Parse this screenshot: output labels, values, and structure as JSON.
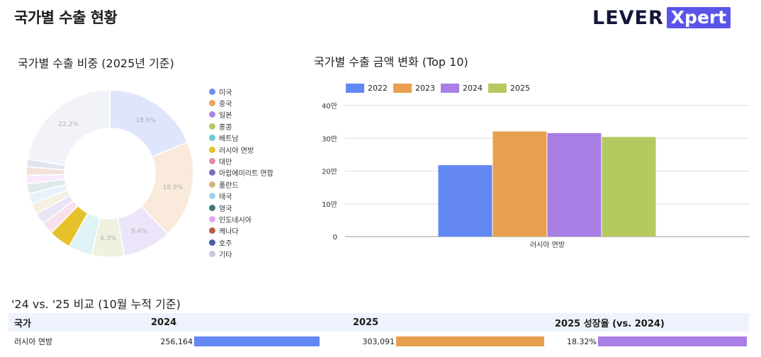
{
  "page_title": "국가별 수출 현황",
  "logo": {
    "text": "LEVER",
    "badge": "Xpert"
  },
  "pie_section": {
    "title": "국가별 수출 비중 (2025년 기준)",
    "slices": [
      {
        "name": "미국",
        "share": 18.9,
        "color": "#dfe5fb",
        "label": "18.9%"
      },
      {
        "name": "중국",
        "share": 18.9,
        "color": "#f9eadb",
        "label": "18.9%"
      },
      {
        "name": "일본",
        "share": 9.4,
        "color": "#ece4f8",
        "label": "9.4%"
      },
      {
        "name": "홍콩",
        "share": 6.3,
        "color": "#eef2df",
        "label": "6.3%"
      },
      {
        "name": "베트남",
        "share": 4.6,
        "color": "#dff2f5",
        "label": ""
      },
      {
        "name": "러시아 연방",
        "share": 4.3,
        "color": "#e5c12c",
        "label": ""
      },
      {
        "name": "대만",
        "share": 2.4,
        "color": "#f9e1ec",
        "label": ""
      },
      {
        "name": "아랍에미리트 연합",
        "share": 2.2,
        "color": "#e8e4f5",
        "label": ""
      },
      {
        "name": "폴란드",
        "share": 2.1,
        "color": "#f6efe2",
        "label": ""
      },
      {
        "name": "태국",
        "share": 2.0,
        "color": "#e7f2fb",
        "label": ""
      },
      {
        "name": "영국",
        "share": 1.9,
        "color": "#dfe9e9",
        "label": ""
      },
      {
        "name": "인도네시아",
        "share": 1.7,
        "color": "#f9eafb",
        "label": ""
      },
      {
        "name": "캐나다",
        "share": 1.6,
        "color": "#f4e1dc",
        "label": ""
      },
      {
        "name": "호주",
        "share": 1.5,
        "color": "#e0e4ee",
        "label": ""
      },
      {
        "name": "기타",
        "share": 22.2,
        "color": "#f1f3f9",
        "label": "22.2%"
      }
    ],
    "legend": [
      {
        "name": "미국",
        "color": "#6f8ef5"
      },
      {
        "name": "중국",
        "color": "#e8a45a"
      },
      {
        "name": "일본",
        "color": "#aa86e6"
      },
      {
        "name": "홍콩",
        "color": "#b3c965"
      },
      {
        "name": "베트남",
        "color": "#6ec6d4"
      },
      {
        "name": "러시아 연방",
        "color": "#e5c12c"
      },
      {
        "name": "대만",
        "color": "#e38ab4"
      },
      {
        "name": "아랍에미리트 연합",
        "color": "#7c6fc4"
      },
      {
        "name": "폴란드",
        "color": "#d9b57c"
      },
      {
        "name": "태국",
        "color": "#a3d1f0"
      },
      {
        "name": "영국",
        "color": "#3f7a7a"
      },
      {
        "name": "인도네시아",
        "color": "#e2a8ee"
      },
      {
        "name": "캐나다",
        "color": "#b85e45"
      },
      {
        "name": "호주",
        "color": "#4a5fa3"
      },
      {
        "name": "기타",
        "color": "#c5c9dc"
      }
    ]
  },
  "bar_section": {
    "title": "국가별 수출 금액 변화 (Top 10)"
  },
  "chart_data": {
    "type": "bar",
    "categories": [
      "러시아 연방"
    ],
    "series": [
      {
        "name": "2022",
        "values": [
          218000
        ],
        "color": "#6388f4"
      },
      {
        "name": "2023",
        "values": [
          321000
        ],
        "color": "#e8a04f"
      },
      {
        "name": "2024",
        "values": [
          316000
        ],
        "color": "#a97ee5"
      },
      {
        "name": "2025",
        "values": [
          304000
        ],
        "color": "#b5c961"
      }
    ],
    "ylim": [
      0,
      400000
    ],
    "yticks": [
      0,
      100000,
      200000,
      300000,
      400000
    ],
    "ytick_labels": [
      "0",
      "10만",
      "20만",
      "30만",
      "40만"
    ],
    "grid": true,
    "legend_position": "top-left"
  },
  "compare_section": {
    "title": "'24 vs. '25 비교 (10월 누적 기준)",
    "headers": {
      "country": "국가",
      "y2024": "2024",
      "y2025": "2025",
      "growth": "2025 성장율 (vs. 2024)"
    },
    "rows": [
      {
        "country": "러시아 연방",
        "y2024_label": "256,164",
        "y2024_value": 256164,
        "y2025_label": "303,091",
        "y2025_value": 303091,
        "growth_label": "18.32%",
        "growth_value": 18.32
      }
    ],
    "colors": {
      "y2024": "#6388f4",
      "y2025": "#e8a04f",
      "growth": "#a97ee5"
    }
  }
}
